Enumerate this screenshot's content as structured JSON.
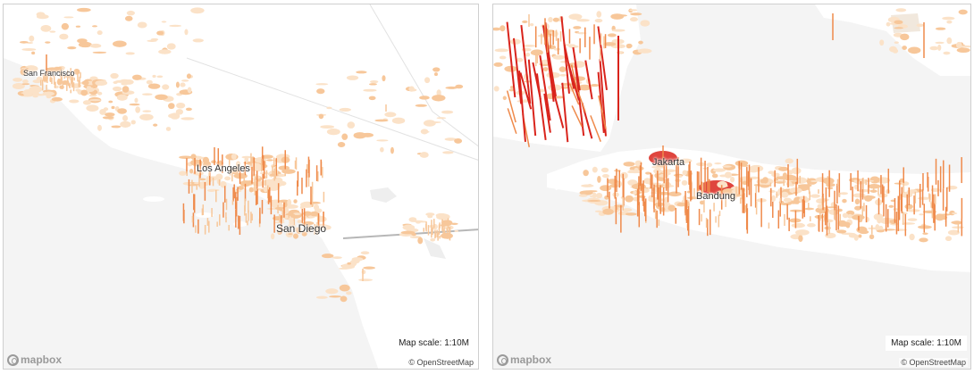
{
  "maps": [
    {
      "region": "southern-california",
      "labels": [
        "San Francisco",
        "Los Angeles",
        "San Diego"
      ],
      "scale_text": "Map scale: 1:10M",
      "attribution": "© OpenStreetMap",
      "logo_text": "mapbox",
      "logo_icon": "mapbox-logo-icon"
    },
    {
      "region": "java-indonesia",
      "labels": [
        "Jakarta",
        "Bandung"
      ],
      "scale_text": "Map scale: 1:10M",
      "attribution": "© OpenStreetMap",
      "logo_text": "mapbox",
      "logo_icon": "mapbox-logo-icon"
    }
  ],
  "colors": {
    "land": "#ffffff",
    "water": "#f4f4f4",
    "population_low": "#f7c79a",
    "population_mid": "#ef8a4b",
    "population_high": "#d9241c"
  }
}
